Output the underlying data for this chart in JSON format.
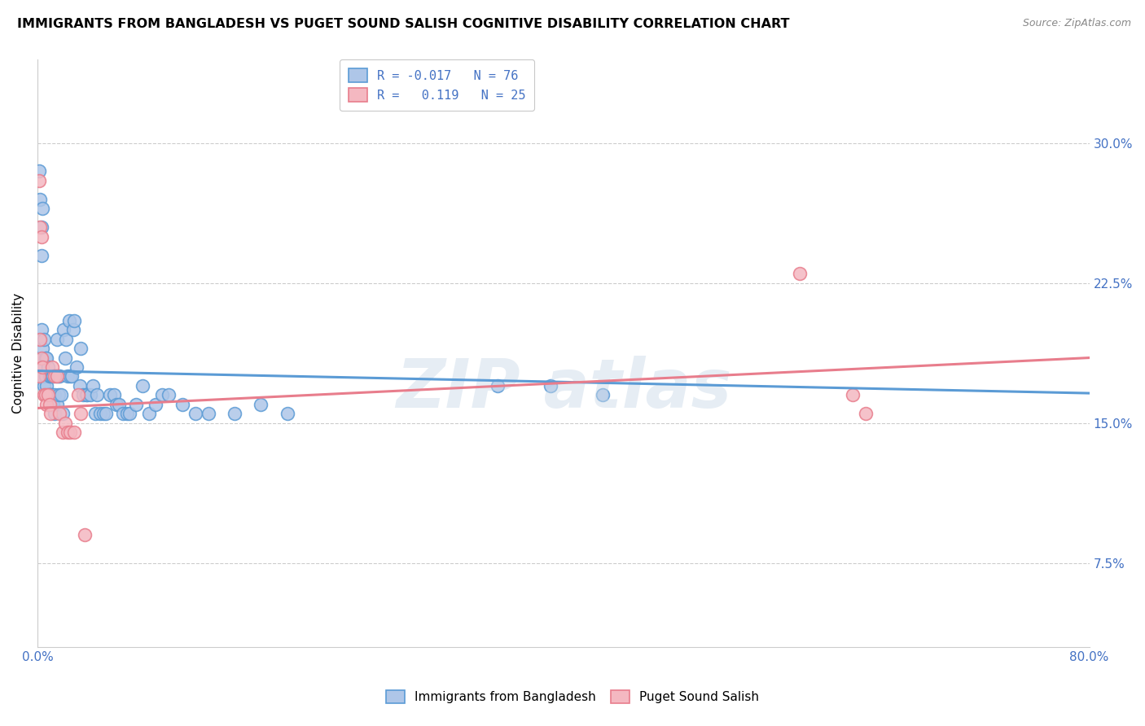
{
  "title": "IMMIGRANTS FROM BANGLADESH VS PUGET SOUND SALISH COGNITIVE DISABILITY CORRELATION CHART",
  "source": "Source: ZipAtlas.com",
  "ylabel": "Cognitive Disability",
  "yticks": [
    0.075,
    0.15,
    0.225,
    0.3
  ],
  "ytick_labels": [
    "7.5%",
    "15.0%",
    "22.5%",
    "30.0%"
  ],
  "xlim": [
    0.0,
    0.8
  ],
  "ylim": [
    0.03,
    0.345
  ],
  "legend_entries": [
    {
      "label": "R = -0.017   N = 76",
      "color": "#aec6e8"
    },
    {
      "label": "R =   0.119   N = 25",
      "color": "#f4b8c1"
    }
  ],
  "blue_scatter": {
    "x": [
      0.001,
      0.002,
      0.002,
      0.003,
      0.003,
      0.004,
      0.004,
      0.005,
      0.005,
      0.006,
      0.006,
      0.007,
      0.007,
      0.008,
      0.008,
      0.009,
      0.009,
      0.01,
      0.01,
      0.011,
      0.011,
      0.012,
      0.012,
      0.013,
      0.013,
      0.014,
      0.015,
      0.015,
      0.016,
      0.016,
      0.017,
      0.018,
      0.019,
      0.02,
      0.021,
      0.022,
      0.023,
      0.024,
      0.025,
      0.026,
      0.027,
      0.028,
      0.03,
      0.032,
      0.033,
      0.035,
      0.037,
      0.038,
      0.04,
      0.042,
      0.044,
      0.045,
      0.048,
      0.05,
      0.052,
      0.055,
      0.058,
      0.06,
      0.062,
      0.065,
      0.068,
      0.07,
      0.075,
      0.08,
      0.085,
      0.09,
      0.095,
      0.1,
      0.11,
      0.12,
      0.13,
      0.15,
      0.17,
      0.19,
      0.35,
      0.39,
      0.43
    ],
    "y": [
      0.18,
      0.175,
      0.195,
      0.185,
      0.2,
      0.175,
      0.19,
      0.17,
      0.195,
      0.175,
      0.185,
      0.17,
      0.185,
      0.165,
      0.18,
      0.165,
      0.175,
      0.165,
      0.175,
      0.165,
      0.175,
      0.16,
      0.175,
      0.165,
      0.155,
      0.175,
      0.16,
      0.195,
      0.175,
      0.165,
      0.175,
      0.165,
      0.155,
      0.2,
      0.185,
      0.195,
      0.175,
      0.205,
      0.175,
      0.175,
      0.2,
      0.205,
      0.18,
      0.17,
      0.19,
      0.165,
      0.165,
      0.165,
      0.165,
      0.17,
      0.155,
      0.165,
      0.155,
      0.155,
      0.155,
      0.165,
      0.165,
      0.16,
      0.16,
      0.155,
      0.155,
      0.155,
      0.16,
      0.17,
      0.155,
      0.16,
      0.165,
      0.165,
      0.16,
      0.155,
      0.155,
      0.155,
      0.16,
      0.155,
      0.17,
      0.17,
      0.165
    ]
  },
  "pink_scatter": {
    "x": [
      0.001,
      0.002,
      0.003,
      0.004,
      0.005,
      0.006,
      0.007,
      0.008,
      0.009,
      0.01,
      0.011,
      0.013,
      0.015,
      0.017,
      0.019,
      0.021,
      0.023,
      0.025,
      0.028,
      0.031,
      0.033,
      0.036,
      0.62,
      0.63,
      0.58
    ],
    "y": [
      0.175,
      0.195,
      0.185,
      0.18,
      0.165,
      0.165,
      0.16,
      0.165,
      0.16,
      0.155,
      0.18,
      0.175,
      0.175,
      0.155,
      0.145,
      0.15,
      0.145,
      0.145,
      0.145,
      0.165,
      0.155,
      0.09,
      0.165,
      0.155,
      0.23
    ]
  },
  "blue_dots_extra": {
    "x": [
      0.001,
      0.002,
      0.003,
      0.003,
      0.004
    ],
    "y": [
      0.285,
      0.27,
      0.255,
      0.24,
      0.265
    ]
  },
  "pink_dots_extra": {
    "x": [
      0.001,
      0.002,
      0.003
    ],
    "y": [
      0.28,
      0.255,
      0.25
    ]
  },
  "blue_line": {
    "x": [
      0.0,
      0.8
    ],
    "y": [
      0.178,
      0.166
    ]
  },
  "pink_line": {
    "x": [
      0.0,
      0.8
    ],
    "y": [
      0.158,
      0.185
    ]
  },
  "blue_color": "#5b9bd5",
  "pink_color": "#e87d8c",
  "blue_fill": "#aec6e8",
  "pink_fill": "#f4b8c1",
  "grid_color": "#cccccc",
  "background_color": "#ffffff"
}
